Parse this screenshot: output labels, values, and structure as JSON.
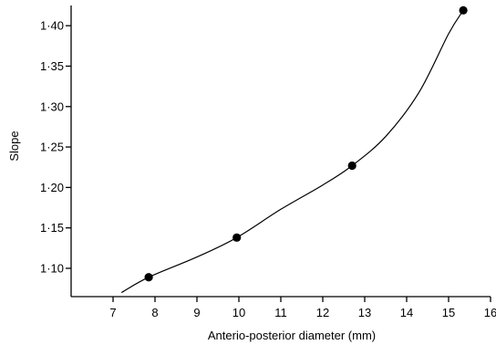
{
  "chart_data": {
    "type": "line",
    "title": "",
    "xlabel": "Anterio-posterior diameter (mm)",
    "ylabel": "Slope",
    "xlim": [
      6,
      16
    ],
    "ylim": [
      1.065,
      1.425
    ],
    "x_ticks": [
      7,
      8,
      9,
      10,
      11,
      12,
      13,
      14,
      15,
      16
    ],
    "x_tick_labels": [
      "7",
      "8",
      "9",
      "10",
      "11",
      "12",
      "13",
      "14",
      "15",
      "16"
    ],
    "y_ticks": [
      1.1,
      1.15,
      1.2,
      1.25,
      1.3,
      1.35,
      1.4
    ],
    "y_tick_labels": [
      "1·10",
      "1·15",
      "1·20",
      "1·25",
      "1·30",
      "1·35",
      "1·40"
    ],
    "grid": false,
    "series": [
      {
        "points": [
          {
            "x": 7.85,
            "y": 1.089
          },
          {
            "x": 9.95,
            "y": 1.138
          },
          {
            "x": 12.7,
            "y": 1.227
          },
          {
            "x": 15.35,
            "y": 1.419
          }
        ],
        "curve": [
          {
            "x": 7.2,
            "y": 1.07
          },
          {
            "x": 7.85,
            "y": 1.089
          },
          {
            "x": 9.0,
            "y": 1.114
          },
          {
            "x": 9.95,
            "y": 1.138
          },
          {
            "x": 11.0,
            "y": 1.173
          },
          {
            "x": 12.0,
            "y": 1.203
          },
          {
            "x": 12.7,
            "y": 1.227
          },
          {
            "x": 13.5,
            "y": 1.263
          },
          {
            "x": 14.3,
            "y": 1.318
          },
          {
            "x": 15.0,
            "y": 1.39
          },
          {
            "x": 15.35,
            "y": 1.419
          }
        ]
      }
    ]
  }
}
